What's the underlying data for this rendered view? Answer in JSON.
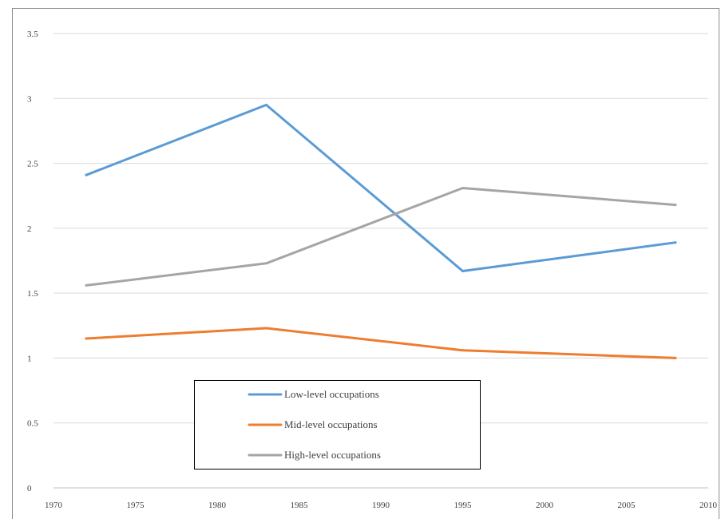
{
  "chart_data": {
    "type": "line",
    "title": "",
    "xlabel": "",
    "ylabel": "",
    "xlim": [
      1970,
      2010
    ],
    "ylim": [
      0,
      3.5
    ],
    "x_ticks": [
      "1970",
      "1975",
      "1980",
      "1985",
      "1990",
      "1995",
      "2000",
      "2005",
      "2010"
    ],
    "y_ticks": [
      "0",
      "0.5",
      "1",
      "1.5",
      "2",
      "2.5",
      "3",
      "3.5"
    ],
    "grid": "horizontal",
    "legend_placement": "lower-left",
    "x": [
      1972,
      1983,
      1995,
      2008
    ],
    "series": [
      {
        "name": "Low-level occupations",
        "color": "#5b9bd5",
        "values": [
          2.41,
          2.95,
          1.67,
          1.89
        ]
      },
      {
        "name": "Mid-level occupations",
        "color": "#ed7d31",
        "values": [
          1.15,
          1.23,
          1.06,
          1.0
        ]
      },
      {
        "name": "High-level occupations",
        "color": "#a5a5a5",
        "values": [
          1.56,
          1.73,
          2.31,
          2.18
        ]
      }
    ]
  }
}
